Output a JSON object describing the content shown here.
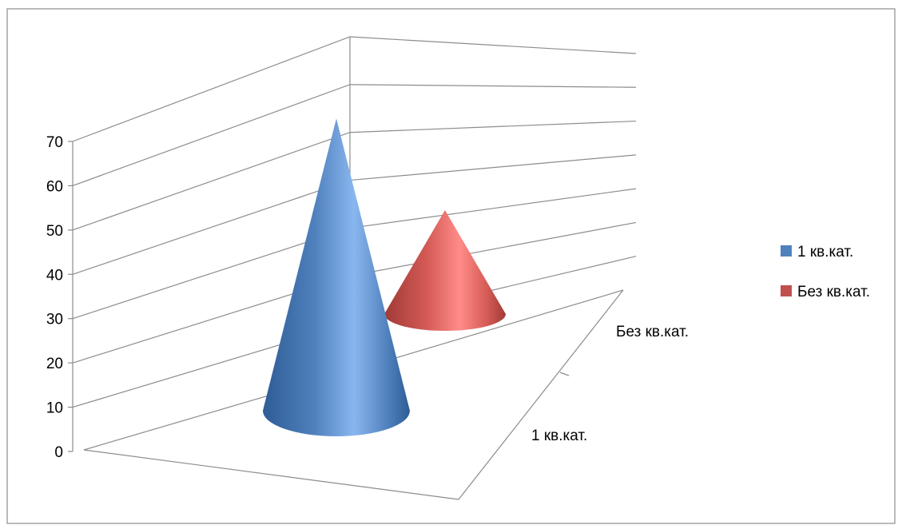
{
  "chart_data": {
    "type": "bar",
    "shape": "cone",
    "three_d": true,
    "categories": [
      "1 кв.кат.",
      "Без кв.кат."
    ],
    "series": [
      {
        "name": "1 кв.кат.",
        "category": "1 кв.кат.",
        "value": 72,
        "color": "#4f81bd"
      },
      {
        "name": "Без кв.кат.",
        "category": "Без кв.кат.",
        "value": 25,
        "color": "#c0504d"
      }
    ],
    "y_ticks": [
      "0",
      "10",
      "20",
      "30",
      "40",
      "50",
      "60",
      "70"
    ],
    "ylim": [
      0,
      70
    ],
    "grid": true,
    "legend_position": "right"
  }
}
